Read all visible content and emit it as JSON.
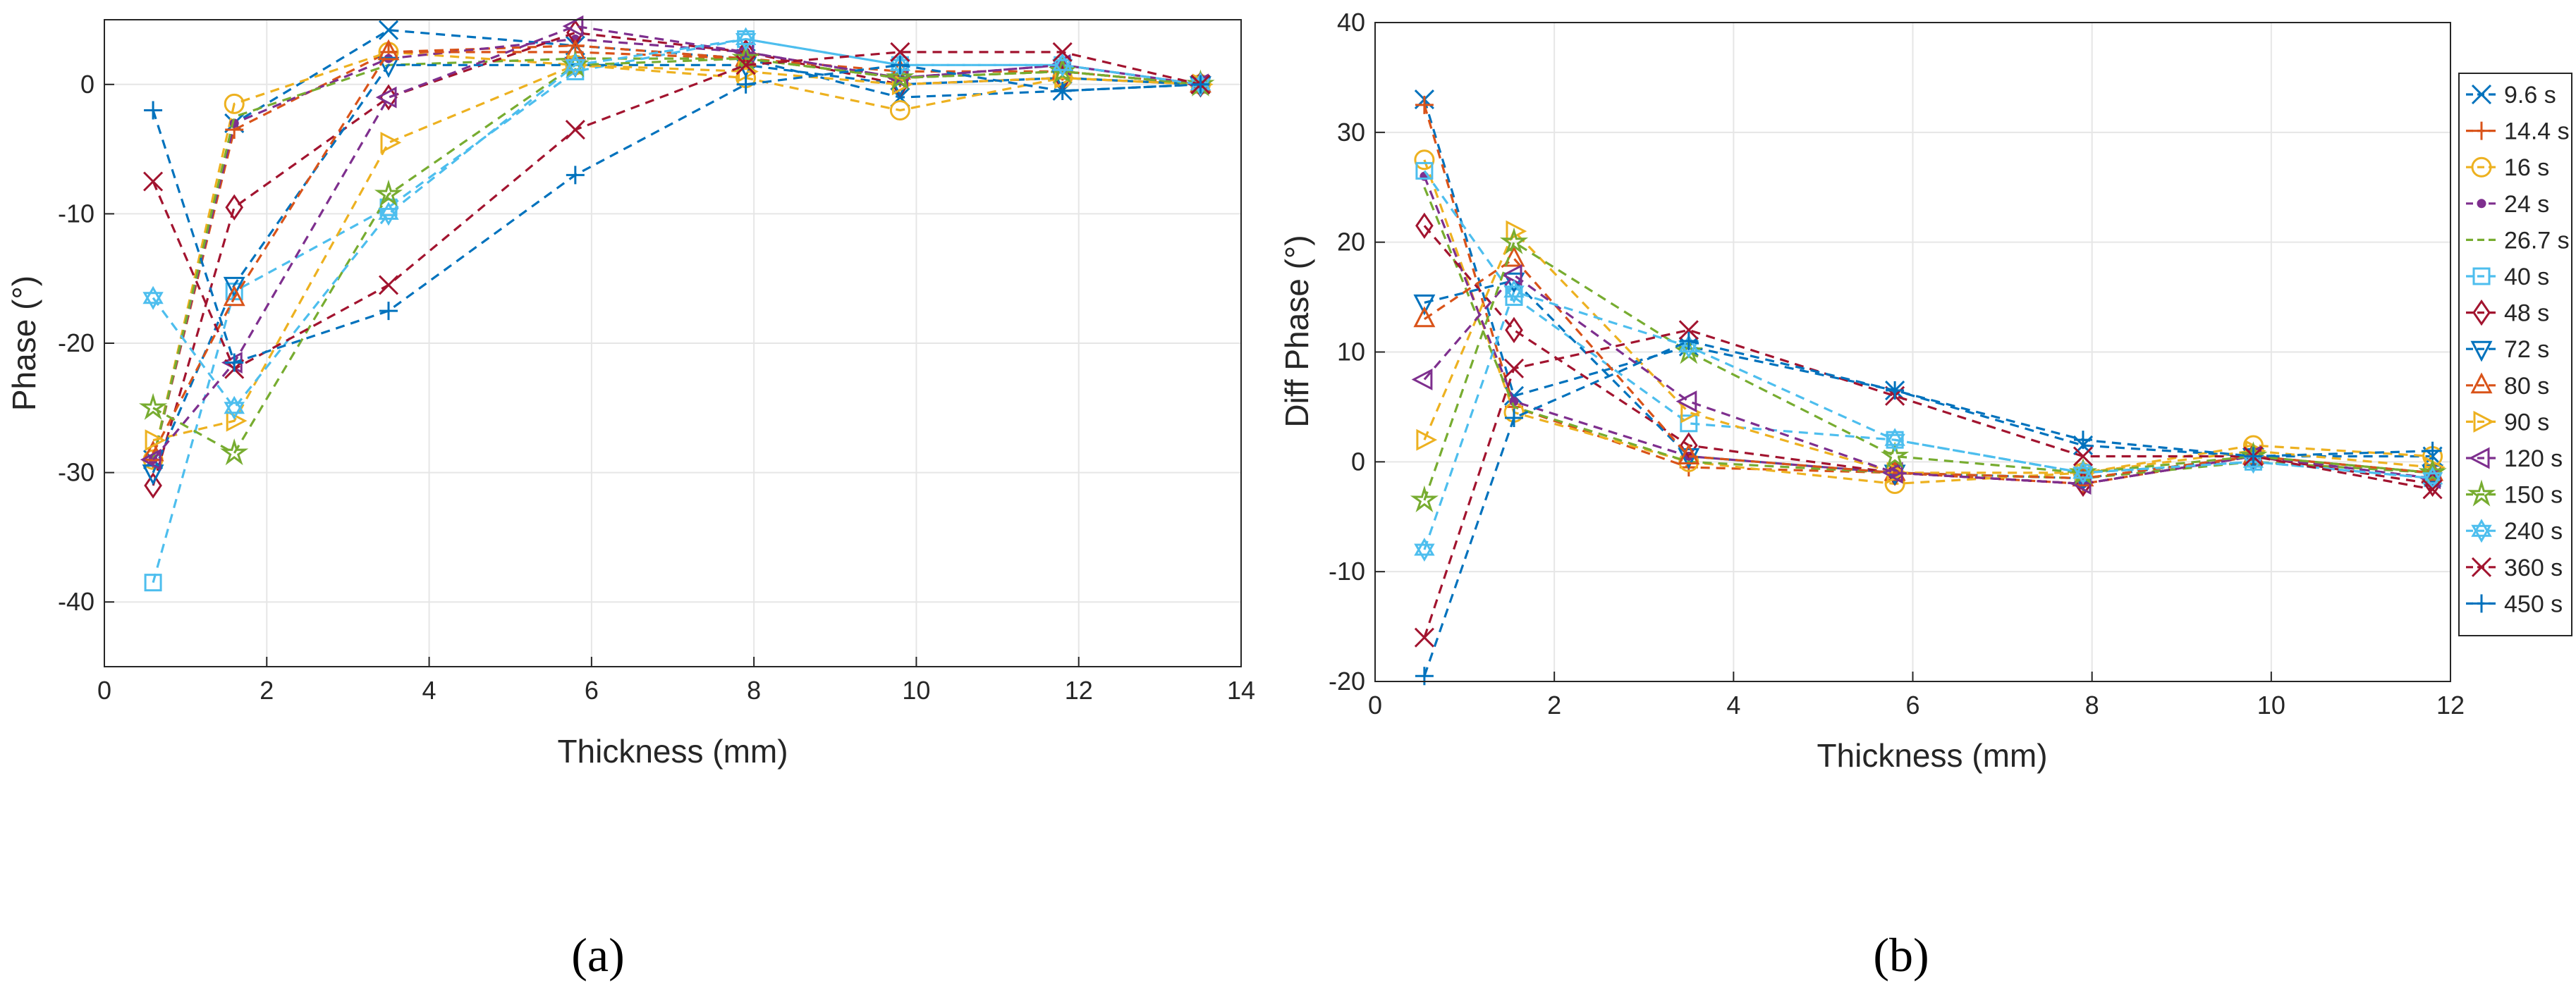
{
  "chart_data": [
    {
      "type": "line",
      "panel_label": "(a)",
      "xlabel": "Thickness (mm)",
      "ylabel": "Phase   (°)",
      "xlim": [
        0,
        14
      ],
      "ylim": [
        -45,
        5
      ],
      "xticks": [
        0,
        2,
        4,
        6,
        8,
        10,
        12,
        14
      ],
      "yticks": [
        0,
        -10,
        -20,
        -30,
        -40
      ],
      "grid": true,
      "x": [
        0.6,
        1.6,
        3.5,
        5.8,
        7.9,
        9.8,
        11.8,
        13.5
      ],
      "series": [
        {
          "name": "9.6 s",
          "values": [
            -29,
            -3,
            4.2,
            3,
            2,
            -1,
            -0.5,
            0
          ]
        },
        {
          "name": "14.4 s",
          "values": [
            -29,
            -3.5,
            2.5,
            3,
            2,
            0.5,
            1,
            0
          ]
        },
        {
          "name": "16 s",
          "values": [
            -29,
            -1.5,
            2.5,
            1.5,
            0.5,
            -2,
            0.5,
            0
          ]
        },
        {
          "name": "24 s",
          "values": [
            -29,
            -3,
            2,
            3.5,
            2.5,
            0.5,
            1.5,
            0
          ]
        },
        {
          "name": "26.7 s",
          "values": [
            -29,
            -2.5,
            1.5,
            2,
            2,
            0.5,
            1,
            0
          ]
        },
        {
          "name": "40 s",
          "values": [
            -38.5,
            -16,
            -9.5,
            1,
            3.5,
            1.5,
            1.5,
            0
          ]
        },
        {
          "name": "48 s",
          "values": [
            -31,
            -9.5,
            -1,
            4,
            2.5,
            0,
            0.5,
            0
          ]
        },
        {
          "name": "72 s",
          "values": [
            -30,
            -15.5,
            1.5,
            1.5,
            1.5,
            0,
            0.5,
            0
          ]
        },
        {
          "name": "80 s",
          "values": [
            -28.5,
            -16.5,
            2.5,
            2.5,
            2,
            1,
            1,
            0
          ]
        },
        {
          "name": "90 s",
          "values": [
            -27.5,
            -26,
            -4.5,
            1.5,
            1,
            0,
            0.5,
            0
          ]
        },
        {
          "name": "120 s",
          "values": [
            -29,
            -21.5,
            -1,
            4.5,
            2.5,
            0.5,
            1.5,
            0
          ]
        },
        {
          "name": "150 s",
          "values": [
            -25,
            -28.5,
            -8.5,
            1.5,
            2,
            0.5,
            1,
            0
          ]
        },
        {
          "name": "240 s",
          "values": [
            -16.5,
            -25,
            -10,
            1.5,
            3.5,
            1.5,
            1.5,
            0
          ]
        },
        {
          "name": "360 s",
          "values": [
            -7.5,
            -22,
            -15.5,
            -3.5,
            1.5,
            2.5,
            2.5,
            0
          ]
        },
        {
          "name": "450 s",
          "values": [
            -2,
            -21.5,
            -17.5,
            -7,
            0,
            1.5,
            -0.5,
            0
          ]
        }
      ]
    },
    {
      "type": "line",
      "panel_label": "(b)",
      "xlabel": "Thickness (mm)",
      "ylabel": "Diff Phase   (°)",
      "xlim": [
        0,
        12
      ],
      "ylim": [
        -20,
        40
      ],
      "xticks": [
        0,
        2,
        4,
        6,
        8,
        10,
        12
      ],
      "yticks": [
        40,
        30,
        20,
        10,
        0,
        -10,
        -20
      ],
      "grid": true,
      "legend": "right",
      "x": [
        0.55,
        1.55,
        3.5,
        5.8,
        7.9,
        9.8,
        11.8
      ],
      "series": [
        {
          "name": "9.6 s",
          "values": [
            33,
            6,
            10.5,
            6.5,
            1.5,
            0.5,
            0.5
          ]
        },
        {
          "name": "14.4 s",
          "values": [
            32.5,
            5,
            -0.5,
            -1,
            -2,
            0.5,
            -1
          ]
        },
        {
          "name": "16 s",
          "values": [
            27.5,
            4.5,
            0,
            -2,
            -1,
            1.5,
            0.5
          ]
        },
        {
          "name": "24 s",
          "values": [
            26,
            5.5,
            0.5,
            -1,
            -2,
            0.5,
            -1.5
          ]
        },
        {
          "name": "26.7 s",
          "values": [
            25,
            5,
            0,
            -1,
            -1.5,
            0,
            -1
          ]
        },
        {
          "name": "40 s",
          "values": [
            26.5,
            15,
            3.5,
            2,
            -1,
            0,
            -1.5
          ]
        },
        {
          "name": "48 s",
          "values": [
            21.5,
            12,
            1.5,
            -1,
            -2,
            0.5,
            -2
          ]
        },
        {
          "name": "72 s",
          "values": [
            14.5,
            16.5,
            0.5,
            -1,
            -1.5,
            0.5,
            -1
          ]
        },
        {
          "name": "80 s",
          "values": [
            13,
            18.5,
            0.5,
            -1,
            -1.5,
            0.5,
            -1
          ]
        },
        {
          "name": "90 s",
          "values": [
            2,
            21,
            4.5,
            -1,
            -1,
            1,
            -0.5
          ]
        },
        {
          "name": "120 s",
          "values": [
            7.5,
            17,
            5.5,
            -1,
            -2,
            0.5,
            -1.5
          ]
        },
        {
          "name": "150 s",
          "values": [
            -3.5,
            20,
            10,
            0.5,
            -1,
            0.5,
            -1
          ]
        },
        {
          "name": "240 s",
          "values": [
            -8,
            15.5,
            10.5,
            2,
            -1,
            0,
            -1.5
          ]
        },
        {
          "name": "360 s",
          "values": [
            -16,
            8.5,
            12,
            6,
            0.5,
            0.5,
            -2.5
          ]
        },
        {
          "name": "450 s",
          "values": [
            -19.5,
            4,
            11,
            6.5,
            2,
            0.5,
            1
          ]
        }
      ]
    }
  ],
  "style": {
    "colors": [
      "#0072BD",
      "#D95319",
      "#EDB120",
      "#7E2F8E",
      "#77AC30",
      "#4DBEEE",
      "#A2142F",
      "#0072BD",
      "#D95319",
      "#EDB120",
      "#7E2F8E",
      "#77AC30",
      "#4DBEEE",
      "#A2142F",
      "#0072BD"
    ],
    "markers": [
      "x",
      "plus",
      "circle",
      "point",
      "none",
      "square",
      "diamond",
      "triangle-down",
      "triangle-up",
      "triangle-right",
      "triangle-left",
      "star",
      "hexagram",
      "x",
      "plus"
    ],
    "grid_color": "#e6e6e6",
    "axis_color": "#262626"
  }
}
